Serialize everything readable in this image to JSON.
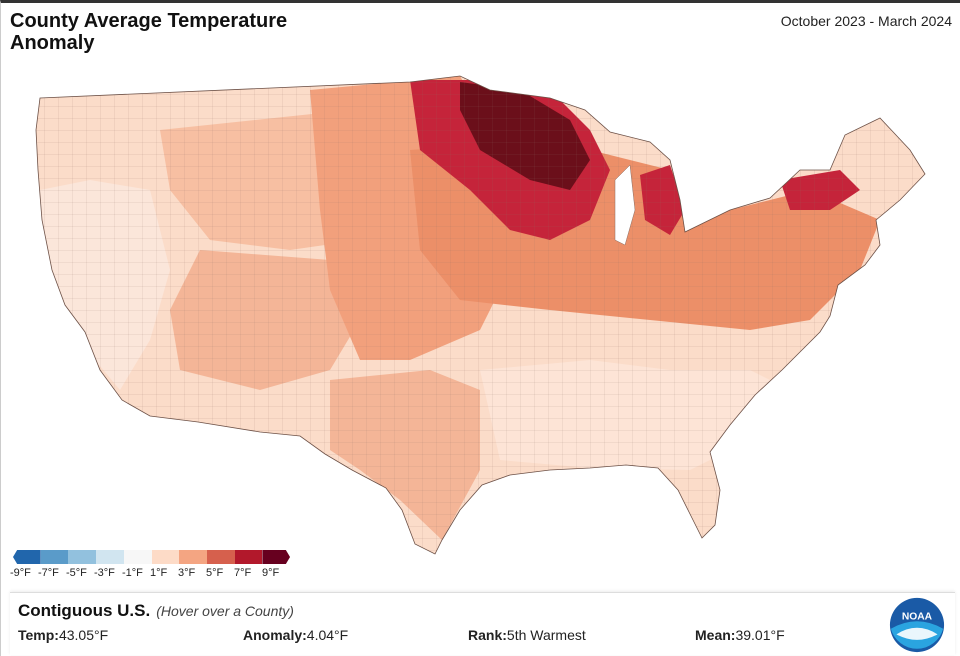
{
  "header": {
    "title": "County Average Temperature Anomaly",
    "date_range": "October 2023 - March 2024"
  },
  "legend": {
    "colors": [
      "#2166ac",
      "#5a9bc9",
      "#92c1de",
      "#d1e5f0",
      "#f7f7f7",
      "#fddbc7",
      "#f4a582",
      "#d6604d",
      "#b2182b",
      "#67001f"
    ],
    "labels": [
      "-9°F",
      "-7°F",
      "-5°F",
      "-3°F",
      "-1°F",
      "1°F",
      "3°F",
      "5°F",
      "7°F",
      "9°F"
    ]
  },
  "panel": {
    "region": "Contiguous U.S.",
    "hint": "(Hover over a County)",
    "temp_label": "Temp:",
    "temp_value": "43.05°F",
    "anomaly_label": "Anomaly:",
    "anomaly_value": "4.04°F",
    "rank_label": "Rank:",
    "rank_value": "5th Warmest",
    "mean_label": "Mean:",
    "mean_value": "39.01°F"
  },
  "logo": {
    "text": "NOAA",
    "icon": "noaa-logo-icon"
  },
  "map": {
    "colors": {
      "light": "#fcd9c4",
      "pale": "#fbe6da",
      "mid": "#f4a582",
      "midlight": "#f7bfa2",
      "strong": "#e8845e",
      "dark": "#c5243a",
      "darkest": "#6b0f1a",
      "border": "#8a6e63"
    }
  }
}
